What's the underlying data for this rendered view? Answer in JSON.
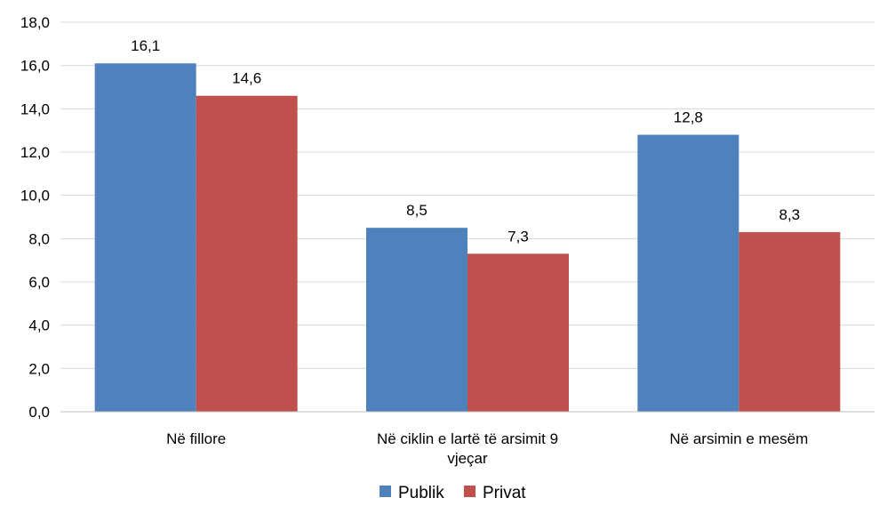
{
  "chart_data": {
    "type": "bar",
    "categories": [
      "Në fillore",
      "Në ciklin e lartë të arsimit 9 vjeçar",
      "Në arsimin e mesëm"
    ],
    "category_lines": [
      [
        "Në fillore"
      ],
      [
        "Në ciklin e lartë të arsimit 9",
        "vjeçar"
      ],
      [
        "Në arsimin e mesëm"
      ]
    ],
    "series": [
      {
        "name": "Publik",
        "values": [
          16.1,
          8.5,
          12.8
        ],
        "labels": [
          "16,1",
          "8,5",
          "12,8"
        ],
        "color": "#4F81BD"
      },
      {
        "name": "Privat",
        "values": [
          14.6,
          7.3,
          8.3
        ],
        "labels": [
          "14,6",
          "7,3",
          "8,3"
        ],
        "color": "#C0504D"
      }
    ],
    "ylim": [
      0,
      18
    ],
    "yticks": [
      0,
      2,
      4,
      6,
      8,
      10,
      12,
      14,
      16,
      18
    ],
    "ytick_labels": [
      "0,0",
      "2,0",
      "4,0",
      "6,0",
      "8,0",
      "10,0",
      "12,0",
      "14,0",
      "16,0",
      "18,0"
    ],
    "grid": true,
    "legend_position": "bottom",
    "title": "",
    "xlabel": "",
    "ylabel": ""
  }
}
